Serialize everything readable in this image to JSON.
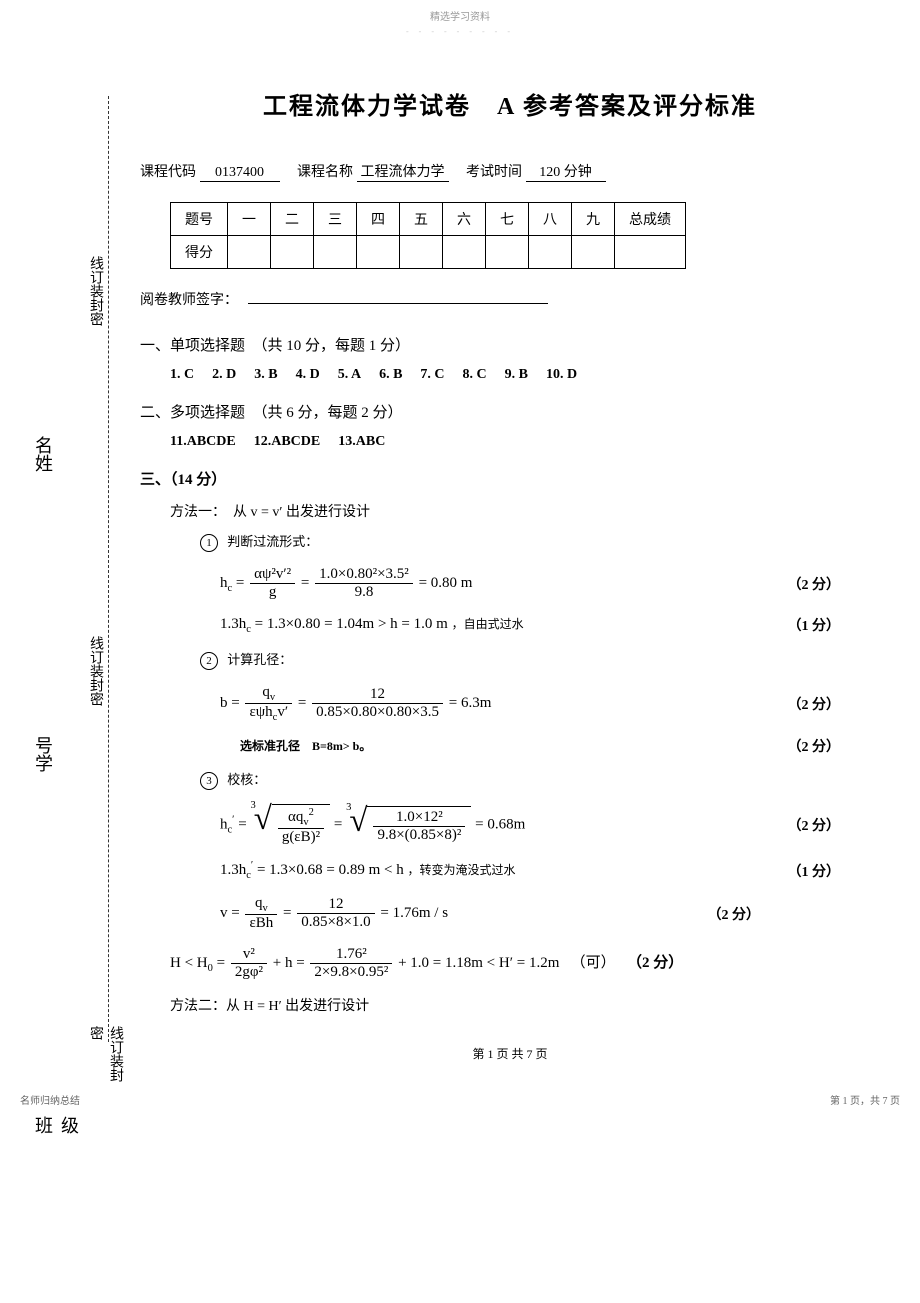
{
  "watermark": {
    "top": "精选学习资料",
    "sub": "- - - - - - - - -"
  },
  "title": "工程流体力学试卷　A 参考答案及评分标准",
  "meta": {
    "code_label": "课程代码",
    "code": "0137400",
    "name_label": "课程名称",
    "name": "工程流体力学",
    "time_label": "考试时间",
    "time": "120 分钟"
  },
  "score_table": {
    "headers": [
      "题号",
      "一",
      "二",
      "三",
      "四",
      "五",
      "六",
      "七",
      "八",
      "九",
      "总成绩"
    ],
    "row2_label": "得分"
  },
  "signer": "阅卷教师签字：",
  "bind_label": "线订装封密",
  "side_name": "名姓",
  "side_num": "号学",
  "side_class": "级班",
  "sections": {
    "s1": {
      "head": "一、单项选择题　（共 10 分，每题 1 分）",
      "answers": [
        {
          "k": "1.",
          "v": "C"
        },
        {
          "k": "2.",
          "v": "D"
        },
        {
          "k": "3.",
          "v": "B"
        },
        {
          "k": "4.",
          "v": "D"
        },
        {
          "k": "5.",
          "v": "A"
        },
        {
          "k": "6.",
          "v": "B"
        },
        {
          "k": "7.",
          "v": "C"
        },
        {
          "k": "8.",
          "v": "C"
        },
        {
          "k": "9.",
          "v": "B"
        },
        {
          "k": "10.",
          "v": "D"
        }
      ]
    },
    "s2": {
      "head": "二、多项选择题　（共 6 分，每题 2 分）",
      "answers": [
        {
          "k": "11.",
          "v": "ABCDE"
        },
        {
          "k": "12.",
          "v": "ABCDE"
        },
        {
          "k": "13.",
          "v": "ABC"
        }
      ]
    },
    "s3": {
      "head": "三、（14 分）",
      "method1": "方法一：　从 v = v′ 出发进行设计",
      "step1": "判断过流形式：",
      "f1": {
        "lhs": "h",
        "lhs_sub": "c",
        "eq": " = ",
        "frac1_num": "αψ²v′²",
        "frac1_den": "g",
        "frac2_num": "1.0×0.80²×3.5²",
        "frac2_den": "9.8",
        "result": " = 0.80 m",
        "score": "（2 分）"
      },
      "f2": {
        "text": "1.3h",
        "t_sub": "c",
        "rest": " = 1.3×0.80 = 1.04m > h = 1.0 m",
        "note": "，自由式过水",
        "score": "（1 分）"
      },
      "step2": "计算孔径：",
      "f3": {
        "lhs": "b = ",
        "frac1_num": "q",
        "frac1_num_sub": "v",
        "frac1_den": "εψh",
        "frac1_den_sub": "c",
        "frac1_den_rest": "v′",
        "frac2_num": "12",
        "frac2_den": "0.85×0.80×0.80×3.5",
        "result": " = 6.3m",
        "score": "（2 分）"
      },
      "f4": {
        "text": "选标准孔径　B=8m> b。",
        "score": "（2 分）"
      },
      "step3": "校核：",
      "f5": {
        "lhs": "h",
        "lhs_sub": "c",
        "lhs_sup": "′",
        "eq": " = ",
        "root_idx": "3",
        "r1_num": "αq",
        "r1_num_sub": "v",
        "r1_num_sup": "2",
        "r1_den": "g(εB)²",
        "r2_num": "1.0×12²",
        "r2_den": "9.8×(0.85×8)²",
        "result": " = 0.68m",
        "score": "（2 分）"
      },
      "f6": {
        "text": "1.3h",
        "t_sub": "c",
        "t_sup": "′",
        "rest": " = 1.3×0.68 = 0.89 m < h",
        "note": "，转变为淹没式过水",
        "score": "（1 分）"
      },
      "f7": {
        "lhs": "v = ",
        "frac1_num": "q",
        "frac1_num_sub": "v",
        "frac1_den": "εBh",
        "frac2_num": "12",
        "frac2_den": "0.85×8×1.0",
        "result": " = 1.76m / s",
        "score": "（2 分）"
      },
      "f8": {
        "lhs": "H < H",
        "lhs_sub": "0",
        "eq": " = ",
        "frac1_num": "v²",
        "frac1_den": "2gφ²",
        "plus": " + h = ",
        "frac2_num": "1.76²",
        "frac2_den": "2×9.8×0.95²",
        "rest": " + 1.0 = 1.18m < H′ = 1.2m",
        "ok": "（可）",
        "score": "（2 分）"
      },
      "method2": "方法二：从 H = H′ 出发进行设计"
    }
  },
  "footer": "第 1 页 共 7 页",
  "corners": {
    "left": "名师归纳总结",
    "right": "第 1 页，共 7 页"
  }
}
